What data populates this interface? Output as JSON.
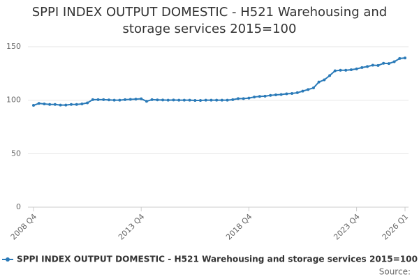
{
  "chart_data": {
    "type": "line",
    "title": "SPPI INDEX OUTPUT DOMESTIC - H521 Warehousing and storage services 2015=100",
    "categories": [
      "2008 Q4",
      null,
      null,
      null,
      null,
      null,
      null,
      null,
      null,
      null,
      null,
      null,
      null,
      null,
      null,
      null,
      null,
      null,
      null,
      null,
      "2013 Q4",
      null,
      null,
      null,
      null,
      null,
      null,
      null,
      null,
      null,
      null,
      null,
      null,
      null,
      null,
      null,
      null,
      null,
      null,
      null,
      "2018 Q4",
      null,
      null,
      null,
      null,
      null,
      null,
      null,
      null,
      null,
      null,
      null,
      null,
      null,
      null,
      null,
      null,
      null,
      null,
      null,
      "2023 Q4",
      null,
      null,
      null,
      null,
      null,
      null,
      null,
      null,
      "2026 Q1"
    ],
    "series": [
      {
        "name": "SPPI INDEX OUTPUT DOMESTIC - H521 Warehousing and storage services 2015=100",
        "color": "#2a7ab8",
        "values": [
          95.2,
          97,
          96.5,
          96,
          96,
          95.5,
          95.5,
          96,
          96,
          96.5,
          97.5,
          100.5,
          100.5,
          100.5,
          100.3,
          100,
          100,
          100.5,
          100.8,
          101,
          101.3,
          99,
          100.5,
          100.3,
          100.2,
          100,
          100.2,
          100,
          100,
          100,
          99.8,
          99.8,
          100,
          100,
          100,
          100,
          100,
          100.5,
          101.5,
          101.5,
          102,
          103,
          103.5,
          103.8,
          104.5,
          105,
          105.3,
          106,
          106.3,
          107,
          108.5,
          110,
          111.5,
          117,
          119,
          123,
          127.5,
          128,
          128,
          128.5,
          129.3,
          130.5,
          131.5,
          132.7,
          132.5,
          134.5,
          134.3,
          136,
          139,
          139.5
        ]
      }
    ],
    "ylim": [
      0,
      150
    ],
    "yticks": [
      0,
      50,
      100,
      150
    ],
    "grid": true,
    "source": "Source:"
  }
}
